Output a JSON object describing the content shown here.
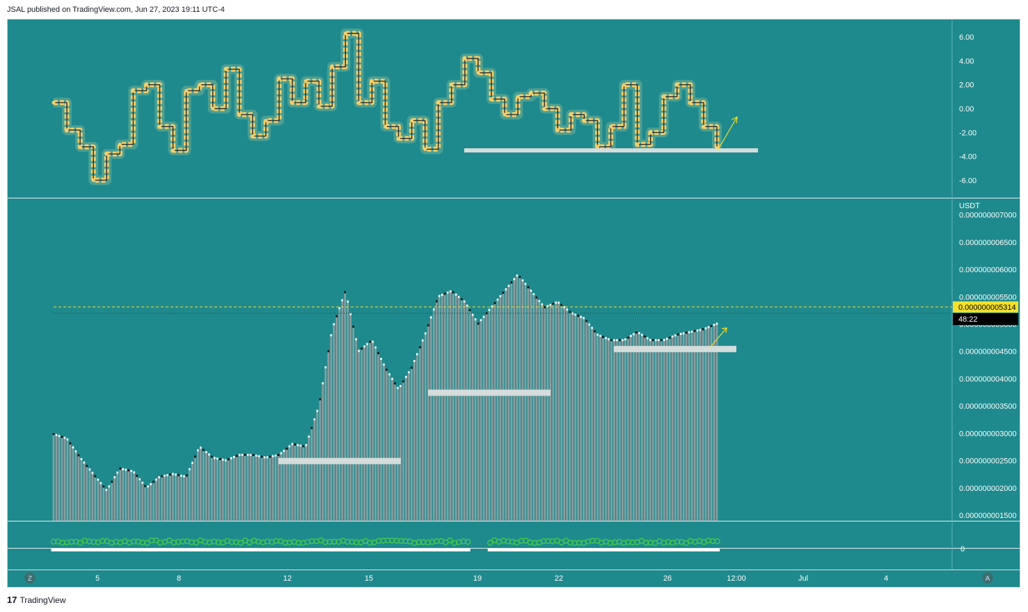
{
  "header": {
    "publisher_line": "JSAL published on TradingView.com, Jun 27, 2023 19:11 UTC-4"
  },
  "footer": {
    "brand": "TradingView",
    "brand_icon": "tradingview-logo-icon"
  },
  "colors": {
    "background": "#1f8a8d",
    "oscillator": "#f2cf6b",
    "bars": "#8a9ea0",
    "price_label_bg": "#f5e02a",
    "countdown_bg": "#000000",
    "annotation_arrow": "#f5e02a",
    "support_zone": "#d4dcdc",
    "dots_green": "#46d146",
    "dots_white": "#ffffff"
  },
  "time_axis": {
    "labels": [
      "5",
      "8",
      "12",
      "15",
      "19",
      "22",
      "26",
      "12:00",
      "Jul",
      "4"
    ],
    "left_button": "Z",
    "right_button": "A"
  },
  "chart_data": [
    {
      "type": "line",
      "panel": "oscillator",
      "ylim": [
        -7,
        7
      ],
      "y_ticks": [
        "6.00",
        "4.00",
        "2.00",
        "0.00",
        "-2.00",
        "-4.00",
        "-6.00"
      ],
      "series": [
        {
          "x": [
            0,
            2,
            4,
            6,
            8,
            10,
            12,
            14,
            16,
            18,
            20,
            22,
            24,
            26,
            28,
            30,
            32,
            34,
            36,
            38,
            40,
            42,
            44,
            46,
            48,
            50,
            52,
            54,
            56,
            58,
            60,
            62,
            64,
            66,
            68,
            70,
            72,
            74,
            76,
            78,
            80,
            82,
            84,
            86,
            88,
            90,
            92,
            94,
            96,
            98,
            100
          ],
          "values": [
            0.5,
            -1.8,
            -3.2,
            -6.0,
            -3.8,
            -3.0,
            1.5,
            2.0,
            -1.5,
            -3.5,
            1.5,
            2.0,
            0.0,
            3.3,
            -0.5,
            -2.3,
            -1.0,
            2.5,
            0.5,
            2.3,
            0.2,
            3.5,
            6.3,
            0.5,
            2.3,
            -1.5,
            -2.5,
            -1.0,
            -3.4,
            0.5,
            2.0,
            4.2,
            3.0,
            0.8,
            -0.5,
            1.0,
            1.3,
            0.0,
            -1.8,
            -0.5,
            -1.0,
            -3.2,
            -1.5,
            2.0,
            -3.0,
            -2.0,
            1.0,
            2.0,
            0.5,
            -1.5,
            -3.3
          ]
        }
      ],
      "reference_line": -3.5
    },
    {
      "type": "bar",
      "panel": "price",
      "ylabel": "USDT",
      "ylim": [
        1.4e-09,
        7.3e-09
      ],
      "y_ticks": [
        "0.000000007000",
        "0.000000006500",
        "0.000000006000",
        "0.000000005500",
        "0.000000005000",
        "0.000000004500",
        "0.000000004000",
        "0.000000003500",
        "0.000000003000",
        "0.000000002500",
        "0.000000002000",
        "0.000000001500"
      ],
      "current_price": "0.000000005314",
      "countdown": "48:22",
      "series": [
        {
          "x": [
            0,
            2,
            4,
            6,
            8,
            10,
            12,
            14,
            16,
            18,
            20,
            22,
            24,
            26,
            28,
            30,
            32,
            34,
            36,
            38,
            40,
            42,
            44,
            46,
            48,
            50,
            52,
            54,
            56,
            58,
            60,
            62,
            64,
            66,
            68,
            70,
            72,
            74,
            76,
            78,
            80,
            82,
            84,
            86,
            88,
            90,
            92,
            94,
            96,
            98,
            100
          ],
          "values": [
            2.98,
            2.9,
            2.55,
            2.25,
            1.95,
            2.35,
            2.3,
            2.0,
            2.2,
            2.25,
            2.2,
            2.75,
            2.55,
            2.5,
            2.6,
            2.6,
            2.55,
            2.6,
            2.8,
            2.75,
            3.5,
            4.9,
            5.6,
            4.5,
            4.7,
            4.2,
            3.8,
            4.2,
            4.8,
            5.5,
            5.6,
            5.4,
            5.0,
            5.3,
            5.6,
            5.9,
            5.6,
            5.3,
            5.4,
            5.2,
            5.1,
            4.8,
            4.7,
            4.7,
            4.85,
            4.7,
            4.7,
            4.8,
            4.85,
            4.9,
            5.0
          ]
        }
      ],
      "support_zones": [
        2.5,
        3.75,
        4.55
      ]
    }
  ]
}
